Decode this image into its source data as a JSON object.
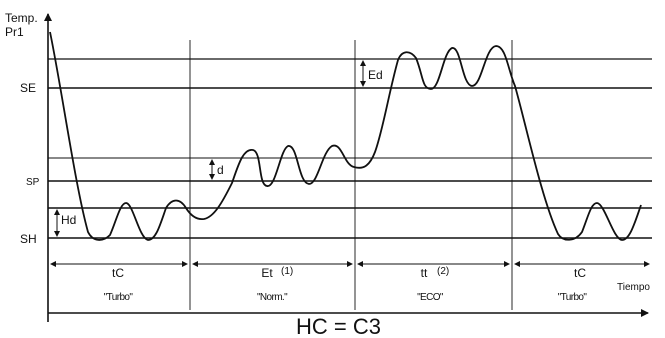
{
  "axes": {
    "y_label_line1": "Temp.",
    "y_label_line2": "Pr1",
    "x_label": "Tiempo"
  },
  "levels": [
    {
      "name": "SE",
      "label": "SE"
    },
    {
      "name": "SP",
      "label": "SP"
    },
    {
      "name": "SH",
      "label": "SH"
    }
  ],
  "differentials": {
    "ed": "Ed",
    "d": "d",
    "hd": "Hd"
  },
  "phases": [
    {
      "code": "tC",
      "note": "",
      "mode": "\"Turbo\""
    },
    {
      "code": "Et",
      "note": "(1)",
      "mode": "\"Norm.\""
    },
    {
      "code": "tt",
      "note": "(2)",
      "mode": "\"ECO\""
    },
    {
      "code": "tC",
      "note": "",
      "mode": "\"Turbo\""
    }
  ],
  "caption": "HC = C3",
  "colors": {
    "line": "#111111",
    "background": "#ffffff"
  }
}
